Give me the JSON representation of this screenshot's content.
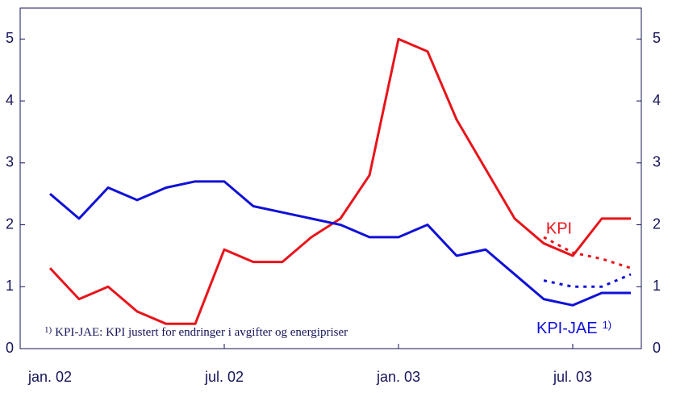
{
  "chart_data": {
    "type": "line",
    "categories": [
      "jan. 02",
      null,
      null,
      null,
      null,
      null,
      "jul. 02",
      null,
      null,
      null,
      null,
      null,
      "jan. 03",
      null,
      null,
      null,
      null,
      null,
      "jul. 03",
      null,
      null
    ],
    "series": [
      {
        "name": "KPI",
        "color": "#e8141b",
        "values": [
          1.3,
          0.8,
          1.0,
          0.6,
          0.4,
          0.4,
          1.6,
          1.4,
          1.4,
          1.8,
          2.1,
          2.8,
          5.0,
          4.8,
          3.7,
          2.9,
          2.1,
          1.7,
          1.5,
          2.1,
          2.1
        ]
      },
      {
        "name": "KPI-JAE",
        "color": "#1010d8",
        "values": [
          2.5,
          2.1,
          2.6,
          2.4,
          2.6,
          2.7,
          2.7,
          2.3,
          2.2,
          2.1,
          2.0,
          1.8,
          1.8,
          2.0,
          1.5,
          1.6,
          1.2,
          0.8,
          0.7,
          0.9,
          0.9
        ]
      },
      {
        "color": "#e8141b",
        "dashed": true,
        "values": [
          null,
          null,
          null,
          null,
          null,
          null,
          null,
          null,
          null,
          null,
          null,
          null,
          null,
          null,
          null,
          null,
          null,
          1.8,
          1.55,
          1.45,
          1.3
        ]
      },
      {
        "color": "#1010d8",
        "dashed": true,
        "values": [
          null,
          null,
          null,
          null,
          null,
          null,
          null,
          null,
          null,
          null,
          null,
          null,
          null,
          null,
          null,
          null,
          null,
          1.1,
          1.0,
          1.0,
          1.2
        ]
      }
    ],
    "ylim": [
      0,
      5.5
    ],
    "yticks": [
      0,
      1,
      2,
      3,
      4,
      5
    ],
    "y2lim": [
      0,
      5.5
    ],
    "y2ticks": [
      0,
      1,
      2,
      3,
      4,
      5
    ],
    "footnote_mark": "1)",
    "footnote": "KPI-JAE: KPI justert for endringer i avgifter og energipriser"
  }
}
